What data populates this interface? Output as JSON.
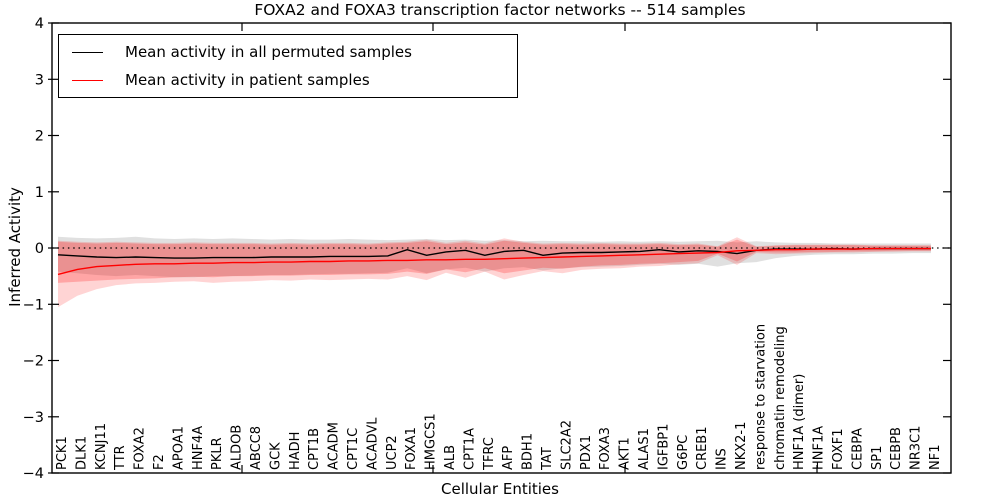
{
  "chart_data": {
    "type": "line",
    "title": "FOXA2 and FOXA3 transcription factor networks -- 514 samples",
    "xlabel": "Cellular Entities",
    "ylabel": "Inferred Activity",
    "ylim": [
      -4,
      4
    ],
    "ytick_labels": [
      "4",
      "3",
      "2",
      "1",
      "0",
      "−1",
      "−2",
      "−3",
      "−4"
    ],
    "zero_reference_line": {
      "y": 0,
      "style": "dotted",
      "color": "#000000"
    },
    "legend_position": "upper left",
    "grid": false,
    "categories": [
      "PCK1",
      "DLK1",
      "KCNJ11",
      "TTR",
      "FOXA2",
      "F2",
      "APOA1",
      "HNF4A",
      "PKLR",
      "ALDOB",
      "ABCC8",
      "GCK",
      "HADH",
      "CPT1B",
      "ACADM",
      "CPT1C",
      "ACADVL",
      "UCP2",
      "FOXA1",
      "HMGCS1",
      "ALB",
      "CPT1A",
      "TFRC",
      "AFP",
      "BDH1",
      "TAT",
      "SLC2A2",
      "PDX1",
      "FOXA3",
      "AKT1",
      "ALAS1",
      "IGFBP1",
      "G6PC",
      "CREB1",
      "INS",
      "NKX2-1",
      "response to starvation",
      "chromatin remodeling",
      "HNF1A (dimer)",
      "HNF1A",
      "FOXF1",
      "CEBPA",
      "SP1",
      "CEBPB",
      "NR3C1",
      "NF1"
    ],
    "series": [
      {
        "name": "Mean activity in all permuted samples",
        "color": "#000000",
        "values": [
          -0.12,
          -0.14,
          -0.16,
          -0.17,
          -0.16,
          -0.17,
          -0.18,
          -0.18,
          -0.17,
          -0.17,
          -0.17,
          -0.16,
          -0.16,
          -0.16,
          -0.15,
          -0.15,
          -0.15,
          -0.14,
          -0.03,
          -0.13,
          -0.07,
          -0.04,
          -0.13,
          -0.06,
          -0.04,
          -0.13,
          -0.09,
          -0.08,
          -0.08,
          -0.07,
          -0.06,
          -0.03,
          -0.07,
          -0.05,
          -0.06,
          -0.1,
          -0.04,
          -0.02,
          -0.02,
          -0.02,
          -0.01,
          -0.02,
          -0.01,
          -0.01,
          -0.01,
          -0.01
        ]
      },
      {
        "name": "Mean activity in patient samples",
        "color": "#ff0000",
        "values": [
          -0.47,
          -0.38,
          -0.33,
          -0.31,
          -0.29,
          -0.28,
          -0.28,
          -0.27,
          -0.27,
          -0.26,
          -0.26,
          -0.25,
          -0.25,
          -0.24,
          -0.24,
          -0.23,
          -0.23,
          -0.22,
          -0.22,
          -0.21,
          -0.21,
          -0.2,
          -0.2,
          -0.19,
          -0.18,
          -0.17,
          -0.16,
          -0.15,
          -0.14,
          -0.13,
          -0.12,
          -0.11,
          -0.1,
          -0.09,
          -0.08,
          -0.05,
          -0.04,
          -0.03,
          -0.03,
          -0.02,
          -0.02,
          -0.02,
          -0.01,
          -0.01,
          -0.01,
          -0.01
        ]
      }
    ],
    "bands": [
      {
        "name": "permuted-samples-std-band",
        "color": "rgba(0,0,0,0.12)",
        "upper": [
          0.2,
          0.18,
          0.17,
          0.18,
          0.2,
          0.17,
          0.16,
          0.17,
          0.16,
          0.17,
          0.16,
          0.15,
          0.16,
          0.15,
          0.15,
          0.16,
          0.15,
          0.14,
          0.15,
          0.16,
          0.14,
          0.15,
          0.13,
          0.14,
          0.12,
          0.13,
          0.12,
          0.12,
          0.11,
          0.12,
          0.11,
          0.12,
          0.11,
          0.12,
          0.13,
          0.1,
          0.12,
          0.1,
          0.09,
          0.09,
          0.08,
          0.08,
          0.08,
          0.08,
          0.08,
          0.08
        ],
        "lower": [
          -0.42,
          -0.45,
          -0.48,
          -0.5,
          -0.48,
          -0.5,
          -0.52,
          -0.52,
          -0.5,
          -0.5,
          -0.49,
          -0.48,
          -0.48,
          -0.47,
          -0.46,
          -0.46,
          -0.45,
          -0.44,
          -0.36,
          -0.45,
          -0.38,
          -0.35,
          -0.42,
          -0.36,
          -0.34,
          -0.4,
          -0.36,
          -0.34,
          -0.33,
          -0.32,
          -0.3,
          -0.28,
          -0.3,
          -0.28,
          -0.33,
          -0.27,
          -0.25,
          -0.18,
          -0.14,
          -0.12,
          -0.11,
          -0.11,
          -0.1,
          -0.1,
          -0.09,
          -0.09
        ]
      },
      {
        "name": "patient-samples-outer-band",
        "color": "rgba(255,0,0,0.17)",
        "upper": [
          0.13,
          0.11,
          0.1,
          0.11,
          0.1,
          0.09,
          0.09,
          0.1,
          0.09,
          0.09,
          0.09,
          0.08,
          0.09,
          0.08,
          0.09,
          0.09,
          0.08,
          0.1,
          0.11,
          0.15,
          0.09,
          0.13,
          0.08,
          0.17,
          0.11,
          0.08,
          0.09,
          0.08,
          0.09,
          0.08,
          0.08,
          0.09,
          0.07,
          0.08,
          0.03,
          0.19,
          0.03,
          0.05,
          0.06,
          0.06,
          0.06,
          0.06,
          0.05,
          0.05,
          0.05,
          0.05
        ],
        "lower": [
          -1.05,
          -0.85,
          -0.73,
          -0.66,
          -0.63,
          -0.62,
          -0.6,
          -0.59,
          -0.62,
          -0.6,
          -0.59,
          -0.57,
          -0.58,
          -0.56,
          -0.57,
          -0.56,
          -0.55,
          -0.56,
          -0.5,
          -0.57,
          -0.44,
          -0.53,
          -0.42,
          -0.56,
          -0.48,
          -0.41,
          -0.45,
          -0.39,
          -0.37,
          -0.36,
          -0.33,
          -0.32,
          -0.29,
          -0.27,
          -0.13,
          -0.3,
          -0.09,
          -0.11,
          -0.1,
          -0.09,
          -0.08,
          -0.08,
          -0.07,
          -0.07,
          -0.06,
          -0.06
        ]
      },
      {
        "name": "patient-samples-inner-band",
        "color": "rgba(255,0,0,0.22)",
        "upper": [
          0.11,
          0.09,
          0.08,
          0.09,
          0.08,
          0.07,
          0.07,
          0.08,
          0.07,
          0.07,
          0.07,
          0.06,
          0.07,
          0.06,
          0.07,
          0.07,
          0.06,
          0.08,
          0.09,
          0.12,
          0.07,
          0.1,
          0.06,
          0.13,
          0.09,
          0.06,
          0.07,
          0.06,
          0.07,
          0.06,
          0.06,
          0.07,
          0.05,
          0.06,
          0.02,
          0.15,
          0.02,
          0.04,
          0.05,
          0.05,
          0.05,
          0.05,
          0.04,
          0.04,
          0.04,
          0.04
        ],
        "lower": [
          -0.62,
          -0.6,
          -0.58,
          -0.56,
          -0.55,
          -0.54,
          -0.52,
          -0.51,
          -0.52,
          -0.5,
          -0.5,
          -0.49,
          -0.49,
          -0.48,
          -0.48,
          -0.47,
          -0.47,
          -0.46,
          -0.42,
          -0.46,
          -0.38,
          -0.43,
          -0.36,
          -0.45,
          -0.4,
          -0.35,
          -0.37,
          -0.33,
          -0.31,
          -0.3,
          -0.28,
          -0.27,
          -0.25,
          -0.23,
          -0.1,
          -0.24,
          -0.07,
          -0.08,
          -0.08,
          -0.07,
          -0.07,
          -0.06,
          -0.06,
          -0.05,
          -0.05,
          -0.05
        ]
      }
    ]
  }
}
